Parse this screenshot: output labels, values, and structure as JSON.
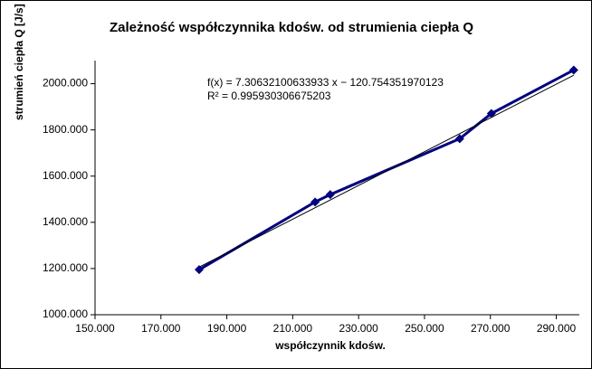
{
  "chart_data": {
    "type": "line",
    "title": "Zależność współczynnika kdośw. od strumienia ciepła Q",
    "x_label": "współczynnik kdośw.",
    "y_label": "strumień ciepła Q [J/s]",
    "x": [
      181.6,
      216.8,
      221.4,
      260.7,
      270.3,
      295.3
    ],
    "series": [
      {
        "color": "#000080",
        "values": [
          1195,
          1488,
          1520,
          1762,
          1871,
          2059
        ]
      }
    ],
    "trendline": {
      "slope": 7.30632100633933,
      "intercept": -120.754351970123,
      "color": "#000000",
      "equation": "f(x) = 7.30632100633933 x − 120.754351970123",
      "r2": 0.995930306675203,
      "r2_label": "R² = 0.995930306675203"
    },
    "xlim": [
      150,
      297
    ],
    "xticks": [
      {
        "value": 150,
        "label": "150.000"
      },
      {
        "value": 170,
        "label": "170.000"
      },
      {
        "value": 190,
        "label": "190.000"
      },
      {
        "value": 210,
        "label": "210.000"
      },
      {
        "value": 230,
        "label": "230.000"
      },
      {
        "value": 250,
        "label": "250.000"
      },
      {
        "value": 270,
        "label": "270.000"
      },
      {
        "value": 290,
        "label": "290.000"
      }
    ],
    "ylim": [
      1000,
      2100
    ],
    "yticks": [
      {
        "value": 1000,
        "label": "1000.000"
      },
      {
        "value": 1200,
        "label": "1200.000"
      },
      {
        "value": 1400,
        "label": "1400.000"
      },
      {
        "value": 1600,
        "label": "1600.000"
      },
      {
        "value": 1800,
        "label": "1800.000"
      },
      {
        "value": 2000,
        "label": "2000.000"
      }
    ]
  }
}
